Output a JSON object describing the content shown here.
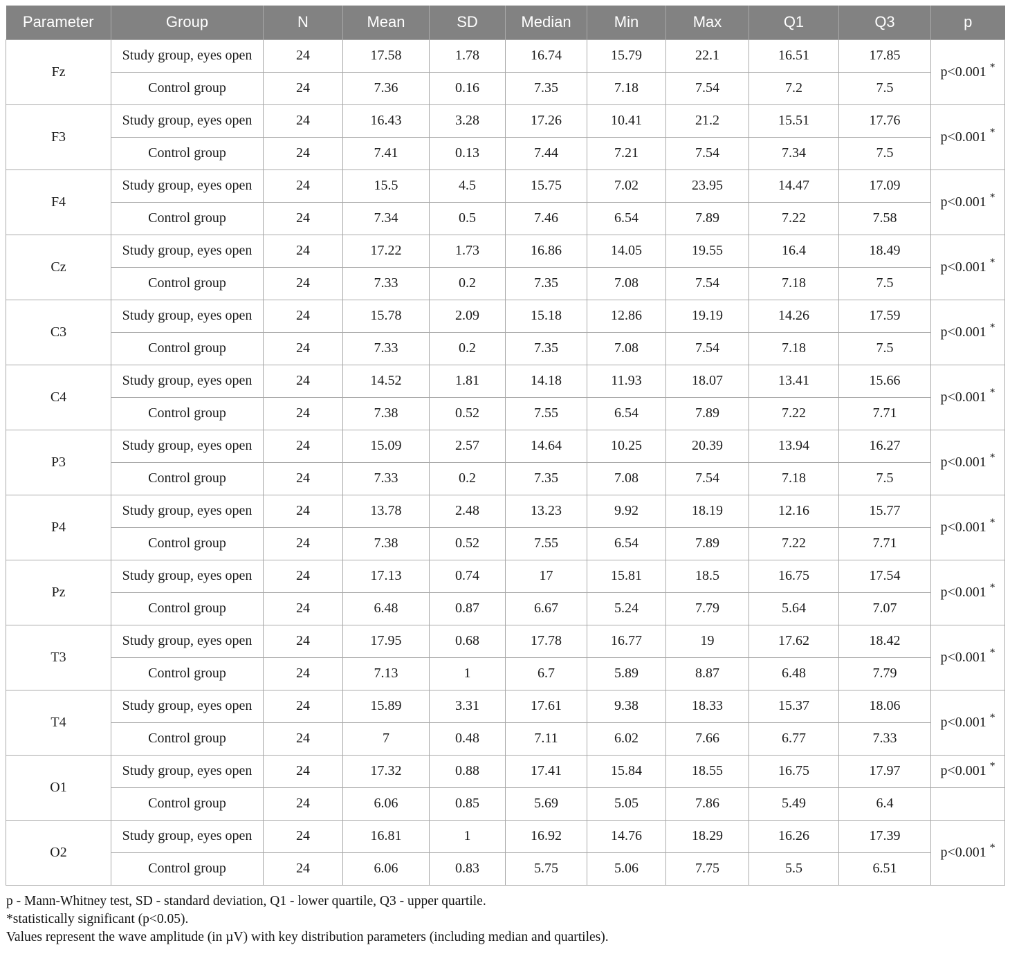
{
  "colors": {
    "header_bg": "#828282",
    "header_text": "#ffffff",
    "border": "#a9a9a9",
    "body_text": "#1c1c1c"
  },
  "table": {
    "columns": [
      "Parameter",
      "Group",
      "N",
      "Mean",
      "SD",
      "Median",
      "Min",
      "Max",
      "Q1",
      "Q3",
      "p"
    ],
    "p_star": "*",
    "rows": [
      {
        "parameter": "Fz",
        "p": "p<0.001",
        "p_split": false,
        "sub_rows": [
          {
            "group": "Study group, eyes open",
            "n": "24",
            "mean": "17.58",
            "sd": "1.78",
            "median": "16.74",
            "min": "15.79",
            "max": "22.1",
            "q1": "16.51",
            "q3": "17.85"
          },
          {
            "group": "Control group",
            "n": "24",
            "mean": "7.36",
            "sd": "0.16",
            "median": "7.35",
            "min": "7.18",
            "max": "7.54",
            "q1": "7.2",
            "q3": "7.5"
          }
        ]
      },
      {
        "parameter": "F3",
        "p": "p<0.001",
        "p_split": false,
        "sub_rows": [
          {
            "group": "Study group, eyes open",
            "n": "24",
            "mean": "16.43",
            "sd": "3.28",
            "median": "17.26",
            "min": "10.41",
            "max": "21.2",
            "q1": "15.51",
            "q3": "17.76"
          },
          {
            "group": "Control group",
            "n": "24",
            "mean": "7.41",
            "sd": "0.13",
            "median": "7.44",
            "min": "7.21",
            "max": "7.54",
            "q1": "7.34",
            "q3": "7.5"
          }
        ]
      },
      {
        "parameter": "F4",
        "p": "p<0.001",
        "p_split": false,
        "sub_rows": [
          {
            "group": "Study group, eyes open",
            "n": "24",
            "mean": "15.5",
            "sd": "4.5",
            "median": "15.75",
            "min": "7.02",
            "max": "23.95",
            "q1": "14.47",
            "q3": "17.09"
          },
          {
            "group": "Control group",
            "n": "24",
            "mean": "7.34",
            "sd": "0.5",
            "median": "7.46",
            "min": "6.54",
            "max": "7.89",
            "q1": "7.22",
            "q3": "7.58"
          }
        ]
      },
      {
        "parameter": "Cz",
        "p": "p<0.001",
        "p_split": false,
        "sub_rows": [
          {
            "group": "Study group, eyes open",
            "n": "24",
            "mean": "17.22",
            "sd": "1.73",
            "median": "16.86",
            "min": "14.05",
            "max": "19.55",
            "q1": "16.4",
            "q3": "18.49"
          },
          {
            "group": "Control group",
            "n": "24",
            "mean": "7.33",
            "sd": "0.2",
            "median": "7.35",
            "min": "7.08",
            "max": "7.54",
            "q1": "7.18",
            "q3": "7.5"
          }
        ]
      },
      {
        "parameter": "C3",
        "p": "p<0.001",
        "p_split": false,
        "sub_rows": [
          {
            "group": "Study group, eyes open",
            "n": "24",
            "mean": "15.78",
            "sd": "2.09",
            "median": "15.18",
            "min": "12.86",
            "max": "19.19",
            "q1": "14.26",
            "q3": "17.59"
          },
          {
            "group": "Control group",
            "n": "24",
            "mean": "7.33",
            "sd": "0.2",
            "median": "7.35",
            "min": "7.08",
            "max": "7.54",
            "q1": "7.18",
            "q3": "7.5"
          }
        ]
      },
      {
        "parameter": "C4",
        "p": "p<0.001",
        "p_split": false,
        "sub_rows": [
          {
            "group": "Study group, eyes open",
            "n": "24",
            "mean": "14.52",
            "sd": "1.81",
            "median": "14.18",
            "min": "11.93",
            "max": "18.07",
            "q1": "13.41",
            "q3": "15.66"
          },
          {
            "group": "Control group",
            "n": "24",
            "mean": "7.38",
            "sd": "0.52",
            "median": "7.55",
            "min": "6.54",
            "max": "7.89",
            "q1": "7.22",
            "q3": "7.71"
          }
        ]
      },
      {
        "parameter": "P3",
        "p": "p<0.001",
        "p_split": false,
        "sub_rows": [
          {
            "group": "Study group, eyes open",
            "n": "24",
            "mean": "15.09",
            "sd": "2.57",
            "median": "14.64",
            "min": "10.25",
            "max": "20.39",
            "q1": "13.94",
            "q3": "16.27"
          },
          {
            "group": "Control group",
            "n": "24",
            "mean": "7.33",
            "sd": "0.2",
            "median": "7.35",
            "min": "7.08",
            "max": "7.54",
            "q1": "7.18",
            "q3": "7.5"
          }
        ]
      },
      {
        "parameter": "P4",
        "p": "p<0.001",
        "p_split": false,
        "sub_rows": [
          {
            "group": "Study group, eyes open",
            "n": "24",
            "mean": "13.78",
            "sd": "2.48",
            "median": "13.23",
            "min": "9.92",
            "max": "18.19",
            "q1": "12.16",
            "q3": "15.77"
          },
          {
            "group": "Control group",
            "n": "24",
            "mean": "7.38",
            "sd": "0.52",
            "median": "7.55",
            "min": "6.54",
            "max": "7.89",
            "q1": "7.22",
            "q3": "7.71"
          }
        ]
      },
      {
        "parameter": "Pz",
        "p": "p<0.001",
        "p_split": false,
        "sub_rows": [
          {
            "group": "Study group, eyes open",
            "n": "24",
            "mean": "17.13",
            "sd": "0.74",
            "median": "17",
            "min": "15.81",
            "max": "18.5",
            "q1": "16.75",
            "q3": "17.54"
          },
          {
            "group": "Control group",
            "n": "24",
            "mean": "6.48",
            "sd": "0.87",
            "median": "6.67",
            "min": "5.24",
            "max": "7.79",
            "q1": "5.64",
            "q3": "7.07"
          }
        ]
      },
      {
        "parameter": "T3",
        "p": "p<0.001",
        "p_split": false,
        "sub_rows": [
          {
            "group": "Study group, eyes open",
            "n": "24",
            "mean": "17.95",
            "sd": "0.68",
            "median": "17.78",
            "min": "16.77",
            "max": "19",
            "q1": "17.62",
            "q3": "18.42"
          },
          {
            "group": "Control group",
            "n": "24",
            "mean": "7.13",
            "sd": "1",
            "median": "6.7",
            "min": "5.89",
            "max": "8.87",
            "q1": "6.48",
            "q3": "7.79"
          }
        ]
      },
      {
        "parameter": "T4",
        "p": "p<0.001",
        "p_split": false,
        "sub_rows": [
          {
            "group": "Study group, eyes open",
            "n": "24",
            "mean": "15.89",
            "sd": "3.31",
            "median": "17.61",
            "min": "9.38",
            "max": "18.33",
            "q1": "15.37",
            "q3": "18.06"
          },
          {
            "group": "Control group",
            "n": "24",
            "mean": "7",
            "sd": "0.48",
            "median": "7.11",
            "min": "6.02",
            "max": "7.66",
            "q1": "6.77",
            "q3": "7.33"
          }
        ]
      },
      {
        "parameter": "O1",
        "p": "p<0.001",
        "p_split": true,
        "sub_rows": [
          {
            "group": "Study group, eyes open",
            "n": "24",
            "mean": "17.32",
            "sd": "0.88",
            "median": "17.41",
            "min": "15.84",
            "max": "18.55",
            "q1": "16.75",
            "q3": "17.97"
          },
          {
            "group": "Control group",
            "n": "24",
            "mean": "6.06",
            "sd": "0.85",
            "median": "5.69",
            "min": "5.05",
            "max": "7.86",
            "q1": "5.49",
            "q3": "6.4"
          }
        ]
      },
      {
        "parameter": "O2",
        "p": "p<0.001",
        "p_split": false,
        "sub_rows": [
          {
            "group": "Study group, eyes open",
            "n": "24",
            "mean": "16.81",
            "sd": "1",
            "median": "16.92",
            "min": "14.76",
            "max": "18.29",
            "q1": "16.26",
            "q3": "17.39"
          },
          {
            "group": "Control group",
            "n": "24",
            "mean": "6.06",
            "sd": "0.83",
            "median": "5.75",
            "min": "5.06",
            "max": "7.75",
            "q1": "5.5",
            "q3": "6.51"
          }
        ]
      }
    ]
  },
  "footnotes": [
    "p - Mann-Whitney test, SD - standard deviation, Q1 - lower quartile, Q3 - upper quartile.",
    "*statistically significant (p<0.05).",
    "Values represent the wave amplitude (in µV) with key distribution parameters (including median and quartiles)."
  ]
}
